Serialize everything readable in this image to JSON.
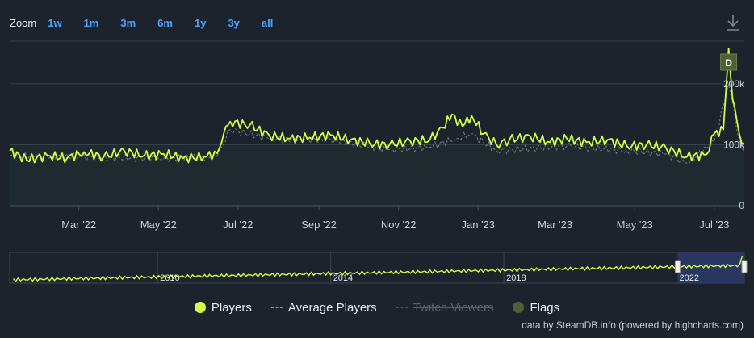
{
  "zoom": {
    "label": "Zoom",
    "buttons": [
      "1w",
      "1m",
      "3m",
      "6m",
      "1y",
      "3y",
      "all"
    ]
  },
  "legend": {
    "players": "Players",
    "average": "Average Players",
    "twitch": "Twitch Viewers",
    "flags": "Flags"
  },
  "credits": "data by SteamDB.info (powered by highcharts.com)",
  "flag_label": "D",
  "colors": {
    "background": "#1d232c",
    "players": "#d2ff46",
    "average": "#8d959d",
    "navigator_fill": "#2e3a6a",
    "flag": "#4f6134",
    "zoom": "#4aa3ff"
  },
  "chart_data": {
    "type": "line",
    "main": {
      "y_ticks": [
        "0",
        "100k",
        "200k"
      ],
      "ylim": [
        0,
        270000
      ],
      "x_range": [
        "2022-01-07",
        "2023-07-24"
      ],
      "x_ticks": [
        {
          "date": "2022-03-01",
          "label": "Mar '22"
        },
        {
          "date": "2022-05-01",
          "label": "May '22"
        },
        {
          "date": "2022-07-01",
          "label": "Jul '22"
        },
        {
          "date": "2022-09-01",
          "label": "Sep '22"
        },
        {
          "date": "2022-11-01",
          "label": "Nov '22"
        },
        {
          "date": "2023-01-01",
          "label": "Jan '23"
        },
        {
          "date": "2023-03-01",
          "label": "Mar '23"
        },
        {
          "date": "2023-05-01",
          "label": "May '23"
        },
        {
          "date": "2023-07-01",
          "label": "Jul '23"
        }
      ],
      "series": [
        {
          "name": "Players",
          "points": [
            [
              "2022-01-07",
              90000
            ],
            [
              "2022-01-20",
              75000
            ],
            [
              "2022-02-05",
              82000
            ],
            [
              "2022-02-20",
              78000
            ],
            [
              "2022-03-05",
              88000
            ],
            [
              "2022-03-20",
              80000
            ],
            [
              "2022-04-05",
              90000
            ],
            [
              "2022-04-20",
              82000
            ],
            [
              "2022-05-05",
              85000
            ],
            [
              "2022-05-20",
              78000
            ],
            [
              "2022-06-05",
              80000
            ],
            [
              "2022-06-15",
              86000
            ],
            [
              "2022-06-20",
              118000
            ],
            [
              "2022-06-25",
              138000
            ],
            [
              "2022-07-10",
              132000
            ],
            [
              "2022-07-25",
              115000
            ],
            [
              "2022-08-10",
              110000
            ],
            [
              "2022-08-25",
              112000
            ],
            [
              "2022-09-10",
              116000
            ],
            [
              "2022-09-25",
              108000
            ],
            [
              "2022-10-10",
              102000
            ],
            [
              "2022-10-25",
              100000
            ],
            [
              "2022-11-10",
              106000
            ],
            [
              "2022-11-25",
              108000
            ],
            [
              "2022-12-05",
              128000
            ],
            [
              "2022-12-12",
              150000
            ],
            [
              "2022-12-20",
              130000
            ],
            [
              "2022-12-27",
              148000
            ],
            [
              "2023-01-05",
              118000
            ],
            [
              "2023-01-15",
              100000
            ],
            [
              "2023-01-25",
              108000
            ],
            [
              "2023-02-10",
              114000
            ],
            [
              "2023-02-25",
              104000
            ],
            [
              "2023-03-10",
              110000
            ],
            [
              "2023-03-25",
              104000
            ],
            [
              "2023-04-10",
              108000
            ],
            [
              "2023-04-25",
              98000
            ],
            [
              "2023-05-10",
              100000
            ],
            [
              "2023-05-25",
              95000
            ],
            [
              "2023-06-10",
              80000
            ],
            [
              "2023-06-25",
              84000
            ],
            [
              "2023-07-01",
              118000
            ],
            [
              "2023-07-08",
              125000
            ],
            [
              "2023-07-12",
              258000
            ],
            [
              "2023-07-15",
              175000
            ],
            [
              "2023-07-20",
              120000
            ],
            [
              "2023-07-24",
              100000
            ]
          ]
        },
        {
          "name": "Average Players",
          "points": [
            [
              "2022-01-07",
              82000
            ],
            [
              "2022-03-01",
              80000
            ],
            [
              "2022-05-01",
              78000
            ],
            [
              "2022-06-15",
              80000
            ],
            [
              "2022-06-25",
              125000
            ],
            [
              "2022-07-25",
              110000
            ],
            [
              "2022-09-10",
              108000
            ],
            [
              "2022-10-25",
              92000
            ],
            [
              "2022-11-25",
              96000
            ],
            [
              "2022-12-15",
              110000
            ],
            [
              "2022-12-27",
              118000
            ],
            [
              "2023-01-15",
              90000
            ],
            [
              "2023-03-10",
              98000
            ],
            [
              "2023-04-25",
              90000
            ],
            [
              "2023-05-25",
              85000
            ],
            [
              "2023-06-10",
              70000
            ],
            [
              "2023-07-01",
              105000
            ],
            [
              "2023-07-12",
              200000
            ],
            [
              "2023-07-20",
              110000
            ],
            [
              "2023-07-24",
              88000
            ]
          ]
        }
      ],
      "flags": [
        {
          "date": "2023-07-12",
          "label": "D"
        }
      ]
    },
    "navigator": {
      "x_range": [
        "2006-08-01",
        "2023-07-24"
      ],
      "x_ticks": [
        {
          "date": "2010-01-01",
          "label": "2010"
        },
        {
          "date": "2014-01-01",
          "label": "2014"
        },
        {
          "date": "2018-01-01",
          "label": "2018"
        },
        {
          "date": "2022-01-01",
          "label": "2022"
        }
      ],
      "selected_range": [
        "2022-01-07",
        "2023-07-24"
      ]
    }
  }
}
